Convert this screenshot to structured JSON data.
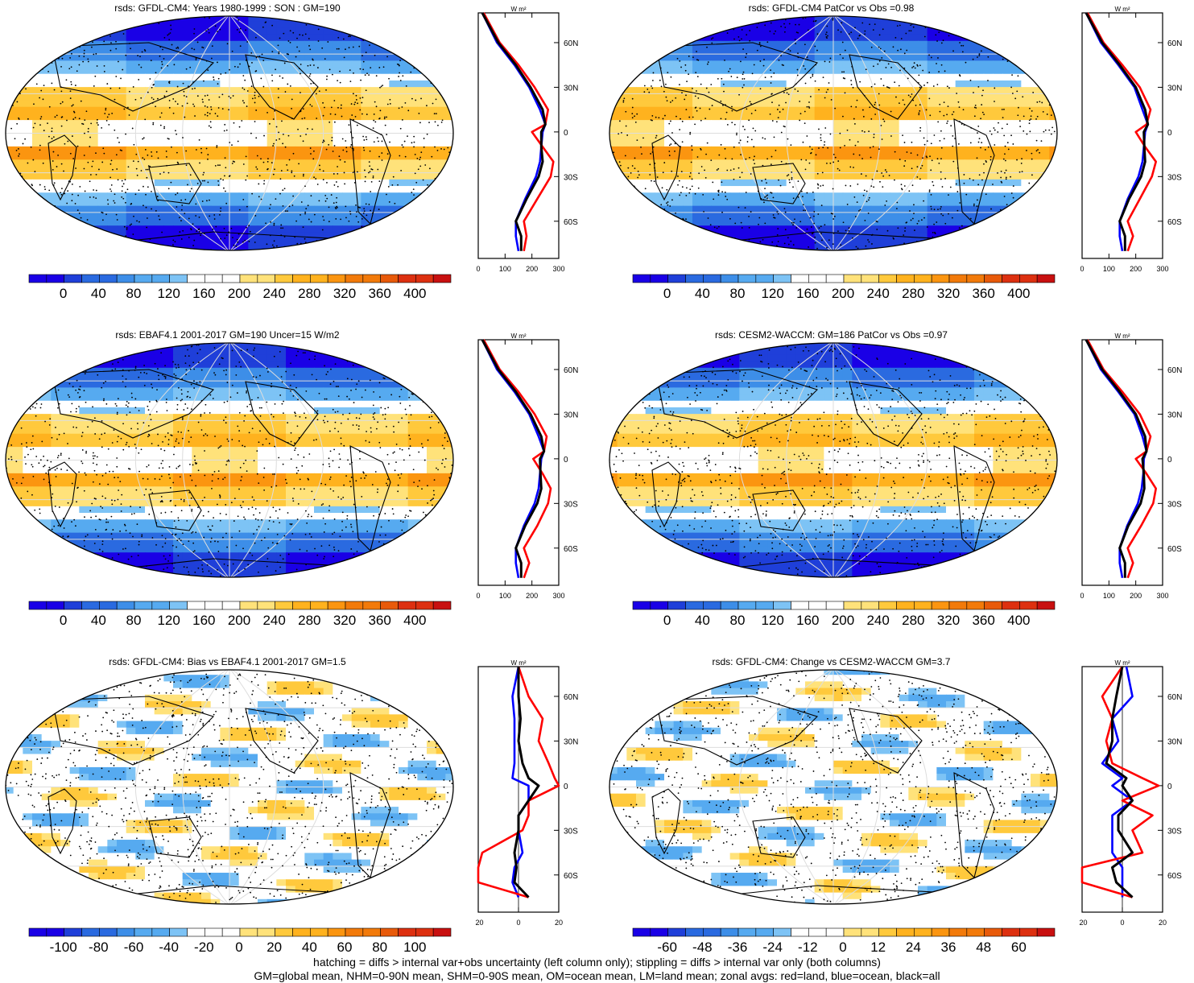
{
  "panels": [
    {
      "title": "rsds: GFDL-CM4: Years 1980-1999 : SON : GM=190",
      "palette": "abs",
      "cb": [
        "0",
        "40",
        "80",
        "120",
        "160",
        "200",
        "240",
        "280",
        "320",
        "360",
        "400"
      ],
      "px": [
        "0",
        "100",
        "200",
        "300"
      ],
      "py": [
        "60N",
        "30N",
        "0",
        "30S",
        "60S"
      ],
      "unit": "W m²"
    },
    {
      "title": "rsds: GFDL-CM4 PatCor vs Obs =0.98",
      "palette": "abs",
      "cb": [
        "0",
        "40",
        "80",
        "120",
        "160",
        "200",
        "240",
        "280",
        "320",
        "360",
        "400"
      ],
      "px": [
        "0",
        "100",
        "200",
        "300"
      ],
      "py": [
        "60N",
        "30N",
        "0",
        "30S",
        "60S"
      ],
      "unit": "W m²"
    },
    {
      "title": "rsds: EBAF4.1 2001-2017 GM=190 Uncer=15 W/m2",
      "palette": "abs",
      "cb": [
        "0",
        "40",
        "80",
        "120",
        "160",
        "200",
        "240",
        "280",
        "320",
        "360",
        "400"
      ],
      "px": [
        "0",
        "100",
        "200",
        "300"
      ],
      "py": [
        "60N",
        "30N",
        "0",
        "30S",
        "60S"
      ],
      "unit": "W m²"
    },
    {
      "title": "rsds: CESM2-WACCM: GM=186 PatCor vs Obs =0.97",
      "palette": "abs",
      "cb": [
        "0",
        "40",
        "80",
        "120",
        "160",
        "200",
        "240",
        "280",
        "320",
        "360",
        "400"
      ],
      "px": [
        "0",
        "100",
        "200",
        "300"
      ],
      "py": [
        "60N",
        "30N",
        "0",
        "30S",
        "60S"
      ],
      "unit": "W m²"
    },
    {
      "title": "rsds: GFDL-CM4: Bias vs EBAF4.1 2001-2017  GM=1.5",
      "palette": "diff",
      "cb": [
        "-100",
        "-80",
        "-60",
        "-40",
        "-20",
        "0",
        "20",
        "40",
        "60",
        "80",
        "100"
      ],
      "px": [
        "-20",
        "0",
        "20"
      ],
      "py": [
        "60N",
        "30N",
        "0",
        "30S",
        "60S"
      ],
      "unit": "W m²"
    },
    {
      "title": "rsds: GFDL-CM4: Change vs CESM2-WACCM GM=3.7",
      "palette": "diff",
      "cb": [
        "-60",
        "-48",
        "-36",
        "-24",
        "-12",
        "0",
        "12",
        "24",
        "36",
        "48",
        "60"
      ],
      "px": [
        "-20",
        "0",
        "20"
      ],
      "py": [
        "60N",
        "30N",
        "0",
        "30S",
        "60S"
      ],
      "unit": "W m²"
    }
  ],
  "footer": {
    "line1": "hatching = diffs > internal var+obs uncertainty (left column only); stippling = diffs > internal var only (both columns)",
    "line2": "GM=global mean, NHM=0-90N mean, SHM=0-90S mean, OM=ocean mean, LM=land mean; zonal avgs: red=land, blue=ocean, black=all"
  },
  "colors": {
    "land": "#ff0000",
    "ocean": "#0000ff",
    "all": "#000000",
    "abs_palette": [
      "#1a00e6",
      "#1f3fd9",
      "#2a6ae0",
      "#3d8ee8",
      "#56aaf0",
      "#7dc3f5",
      "#ffffff",
      "#ffffff",
      "#ffe27a",
      "#ffc93c",
      "#ffb21e",
      "#fb9510",
      "#f27a0a",
      "#e85a0a",
      "#dd3010",
      "#c81010"
    ],
    "diff_palette": [
      "#1a00e6",
      "#1f3fd9",
      "#2a6ae0",
      "#3d8ee8",
      "#56aaf0",
      "#7dc3f5",
      "#ffffff",
      "#ffffff",
      "#ffe27a",
      "#ffc93c",
      "#ffb21e",
      "#fb9510",
      "#f27a0a",
      "#e85a0a",
      "#dd3010",
      "#c81010"
    ]
  },
  "chart_data": [
    {
      "type": "heatmap",
      "title": "rsds: GFDL-CM4: Years 1980-1999 : SON : GM=190",
      "colorbar_ticks": [
        0,
        40,
        80,
        120,
        160,
        200,
        240,
        280,
        320,
        360,
        400
      ],
      "zonal_profile": {
        "lat": [
          80,
          60,
          45,
          30,
          15,
          5,
          0,
          -10,
          -20,
          -30,
          -45,
          -60,
          -70,
          -80
        ],
        "land": [
          20,
          80,
          150,
          210,
          260,
          250,
          200,
          240,
          280,
          270,
          220,
          170,
          180,
          170
        ],
        "ocean": [
          15,
          70,
          135,
          190,
          230,
          250,
          240,
          235,
          230,
          215,
          175,
          140,
          140,
          150
        ],
        "all": [
          15,
          75,
          140,
          195,
          240,
          250,
          235,
          235,
          240,
          225,
          180,
          140,
          160,
          160
        ]
      }
    },
    {
      "type": "heatmap",
      "title": "rsds: GFDL-CM4 PatCor vs Obs =0.98",
      "colorbar_ticks": [
        0,
        40,
        80,
        120,
        160,
        200,
        240,
        280,
        320,
        360,
        400
      ],
      "zonal_profile": {
        "lat": [
          80,
          60,
          45,
          30,
          15,
          5,
          0,
          -10,
          -20,
          -30,
          -45,
          -60,
          -70,
          -80
        ],
        "land": [
          20,
          80,
          150,
          215,
          255,
          240,
          200,
          235,
          275,
          260,
          215,
          170,
          190,
          170
        ],
        "ocean": [
          15,
          70,
          135,
          195,
          225,
          245,
          235,
          230,
          225,
          210,
          170,
          140,
          140,
          150
        ],
        "all": [
          15,
          75,
          140,
          200,
          235,
          245,
          230,
          232,
          235,
          220,
          175,
          140,
          160,
          160
        ]
      }
    },
    {
      "type": "heatmap",
      "title": "rsds: EBAF4.1 2001-2017 GM=190 Uncer=15 W/m2",
      "colorbar_ticks": [
        0,
        40,
        80,
        120,
        160,
        200,
        240,
        280,
        320,
        360,
        400
      ],
      "zonal_profile": {
        "lat": [
          80,
          60,
          45,
          30,
          15,
          5,
          0,
          -10,
          -20,
          -30,
          -45,
          -60,
          -70,
          -80
        ],
        "land": [
          20,
          80,
          150,
          210,
          255,
          245,
          205,
          240,
          270,
          260,
          220,
          170,
          190,
          170
        ],
        "ocean": [
          15,
          70,
          135,
          190,
          225,
          245,
          235,
          230,
          225,
          210,
          170,
          140,
          140,
          150
        ],
        "all": [
          15,
          75,
          140,
          195,
          235,
          245,
          230,
          232,
          235,
          220,
          175,
          140,
          160,
          160
        ]
      }
    },
    {
      "type": "heatmap",
      "title": "rsds: CESM2-WACCM: GM=186 PatCor vs Obs =0.97",
      "colorbar_ticks": [
        0,
        40,
        80,
        120,
        160,
        200,
        240,
        280,
        320,
        360,
        400
      ],
      "zonal_profile": {
        "lat": [
          80,
          60,
          45,
          30,
          15,
          5,
          0,
          -10,
          -20,
          -30,
          -45,
          -60,
          -70,
          -80
        ],
        "land": [
          20,
          80,
          150,
          215,
          255,
          240,
          200,
          240,
          275,
          265,
          220,
          170,
          190,
          170
        ],
        "ocean": [
          15,
          70,
          135,
          195,
          225,
          240,
          230,
          228,
          222,
          208,
          168,
          140,
          140,
          150
        ],
        "all": [
          15,
          75,
          140,
          200,
          235,
          240,
          225,
          230,
          232,
          218,
          172,
          140,
          160,
          160
        ]
      }
    },
    {
      "type": "heatmap",
      "title": "rsds: GFDL-CM4: Bias vs EBAF4.1 2001-2017  GM=1.5",
      "colorbar_ticks": [
        -100,
        -80,
        -60,
        -40,
        -20,
        0,
        20,
        40,
        60,
        80,
        100
      ],
      "zonal_profile": {
        "lat": [
          80,
          60,
          45,
          30,
          15,
          5,
          0,
          -10,
          -20,
          -30,
          -45,
          -55,
          -65,
          -75
        ],
        "land": [
          0,
          5,
          12,
          10,
          15,
          18,
          20,
          5,
          5,
          2,
          -18,
          -22,
          -20,
          5
        ],
        "ocean": [
          0,
          -3,
          -2,
          -2,
          -2,
          -3,
          5,
          5,
          0,
          0,
          2,
          -2,
          -3,
          0
        ],
        "all": [
          0,
          0,
          1,
          0,
          2,
          5,
          10,
          5,
          0,
          0,
          -2,
          -1,
          -2,
          5
        ]
      }
    },
    {
      "type": "heatmap",
      "title": "rsds: GFDL-CM4: Change vs CESM2-WACCM GM=3.7",
      "colorbar_ticks": [
        -60,
        -48,
        -36,
        -24,
        -12,
        0,
        12,
        24,
        36,
        48,
        60
      ],
      "zonal_profile": {
        "lat": [
          80,
          60,
          45,
          30,
          15,
          5,
          0,
          -10,
          -20,
          -30,
          -45,
          -55,
          -65,
          -75
        ],
        "land": [
          0,
          -10,
          -5,
          -8,
          -5,
          10,
          18,
          0,
          15,
          5,
          10,
          -25,
          -30,
          5
        ],
        "ocean": [
          2,
          5,
          -5,
          -2,
          -10,
          0,
          -5,
          5,
          -5,
          -5,
          -5,
          0,
          0,
          0
        ],
        "all": [
          0,
          -3,
          -5,
          -5,
          -8,
          2,
          0,
          5,
          -2,
          -2,
          5,
          -5,
          -3,
          5
        ]
      }
    }
  ]
}
